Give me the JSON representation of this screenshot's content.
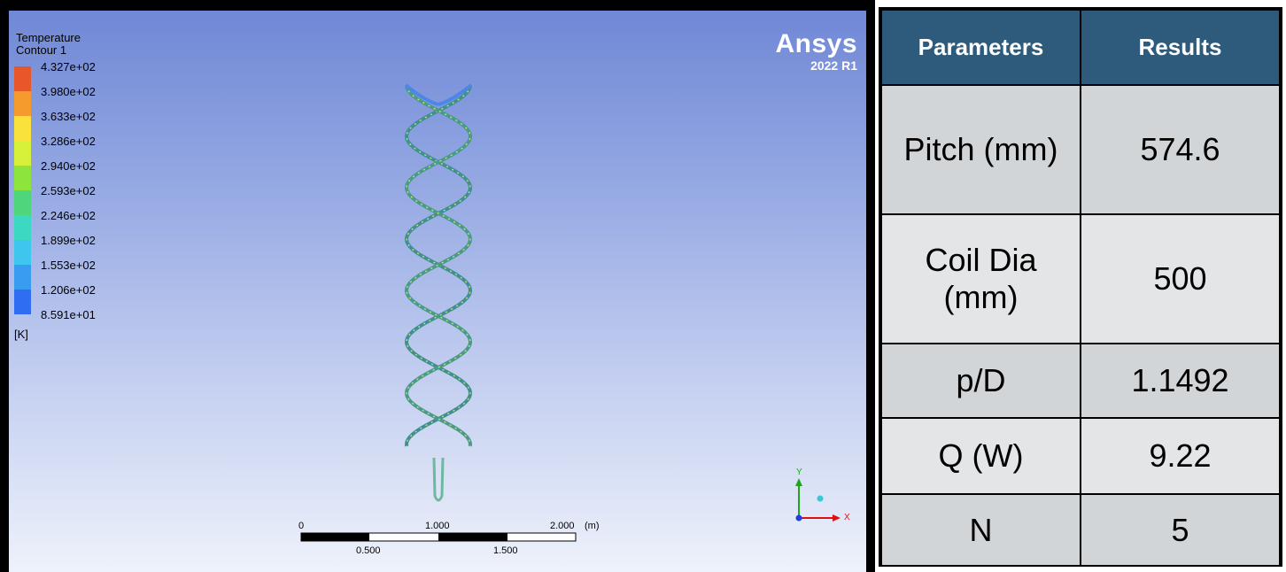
{
  "viewport": {
    "legend_title": "Temperature",
    "legend_subtitle": "Contour 1",
    "unit": "[K]",
    "colorbar": {
      "colors": [
        "#e8572a",
        "#f59b2d",
        "#f9e23c",
        "#d7f03a",
        "#8de43c",
        "#4fd67a",
        "#3dd8c2",
        "#3ec6ee",
        "#3a9cf0",
        "#2f6df2",
        "#1c2fe8"
      ],
      "ticks": [
        "4.327e+02",
        "3.980e+02",
        "3.633e+02",
        "3.286e+02",
        "2.940e+02",
        "2.593e+02",
        "2.246e+02",
        "1.899e+02",
        "1.553e+02",
        "1.206e+02",
        "8.591e+01"
      ]
    },
    "brand": {
      "name": "Ansys",
      "version": "2022 R1"
    },
    "scale_bar": {
      "top_labels": [
        "0",
        "1.000",
        "2.000",
        "(m)"
      ],
      "bottom_labels": [
        "0.500",
        "1.500"
      ]
    },
    "axes": {
      "y": "Y",
      "x": "X"
    }
  },
  "table": {
    "headers": [
      "Parameters",
      "Results"
    ],
    "rows": [
      {
        "param": "Pitch (mm)",
        "value": "574.6"
      },
      {
        "param": "Coil Dia (mm)",
        "value": "500"
      },
      {
        "param": "p/D",
        "value": "1.1492"
      },
      {
        "param": "Q (W)",
        "value": "9.22"
      },
      {
        "param": "N",
        "value": "5"
      }
    ]
  }
}
